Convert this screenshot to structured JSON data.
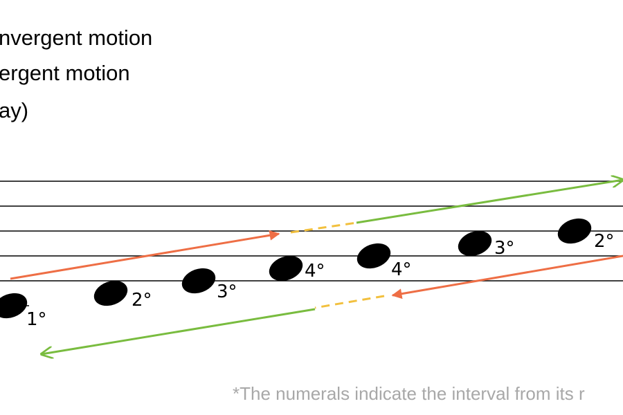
{
  "legend": [
    "nvergent motion",
    "ergent motion",
    "ay)"
  ],
  "notes": [
    {
      "label": "1°"
    },
    {
      "label": "2°"
    },
    {
      "label": "3°"
    },
    {
      "label": "4°"
    },
    {
      "label": "4°"
    },
    {
      "label": "3°"
    },
    {
      "label": "2°"
    }
  ],
  "footnote": "*The numerals indicate the interval from its r"
}
